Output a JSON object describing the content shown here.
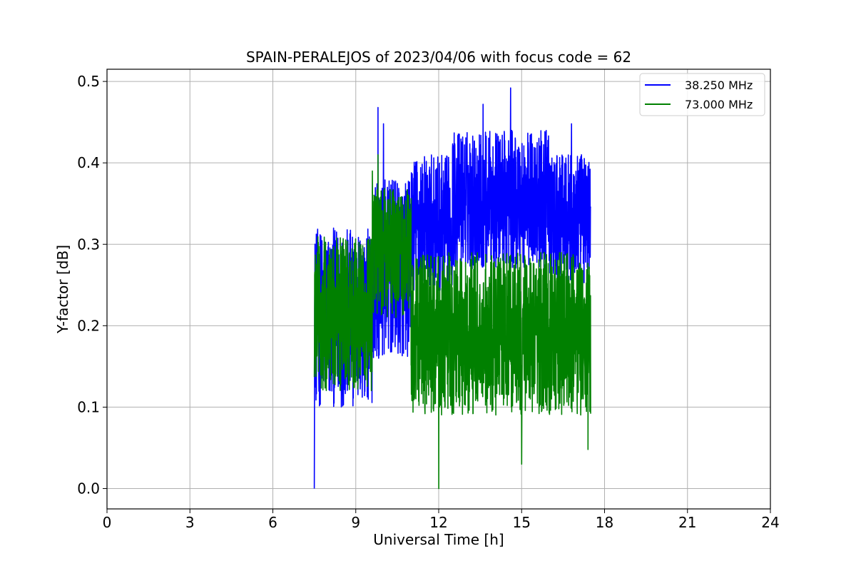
{
  "chart_data": {
    "type": "line",
    "title": "SPAIN-PERALEJOS of 2023/04/06 with focus code = 62",
    "xlabel": "Universal Time [h]",
    "ylabel": "Y-factor [dB]",
    "xlim": [
      0,
      24
    ],
    "ylim": [
      -0.025,
      0.515
    ],
    "xticks": [
      0,
      3,
      6,
      9,
      12,
      15,
      18,
      21,
      24
    ],
    "yticks": [
      0.0,
      0.1,
      0.2,
      0.3,
      0.4,
      0.5
    ],
    "ytick_labels": [
      "0.0",
      "0.1",
      "0.2",
      "0.3",
      "0.4",
      "0.5"
    ],
    "grid": true,
    "legend_position": "top-right",
    "series": [
      {
        "name": "38.250 MHz",
        "color": "#0000ff",
        "segments": [
          {
            "x_start": 7.5,
            "x_end": 9.6,
            "low": 0.1,
            "high": 0.32
          },
          {
            "x_start": 9.6,
            "x_end": 11.0,
            "low": 0.16,
            "high": 0.38
          },
          {
            "x_start": 11.0,
            "x_end": 12.5,
            "low": 0.24,
            "high": 0.41
          },
          {
            "x_start": 12.5,
            "x_end": 16.0,
            "low": 0.27,
            "high": 0.44
          },
          {
            "x_start": 16.0,
            "x_end": 17.5,
            "low": 0.25,
            "high": 0.41
          }
        ],
        "peaks": [
          [
            7.5,
            0.0
          ],
          [
            9.8,
            0.468
          ],
          [
            10.0,
            0.448
          ],
          [
            13.6,
            0.472
          ],
          [
            14.6,
            0.492
          ],
          [
            16.8,
            0.448
          ]
        ]
      },
      {
        "name": "73.000 MHz",
        "color": "#008000",
        "segments": [
          {
            "x_start": 7.5,
            "x_end": 9.6,
            "low": 0.12,
            "high": 0.31
          },
          {
            "x_start": 9.6,
            "x_end": 11.0,
            "low": 0.21,
            "high": 0.37
          },
          {
            "x_start": 11.0,
            "x_end": 17.5,
            "low": 0.09,
            "high": 0.29
          }
        ],
        "peaks": [
          [
            9.8,
            0.41
          ],
          [
            9.6,
            0.39
          ],
          [
            12.0,
            0.0
          ],
          [
            15.0,
            0.03
          ],
          [
            17.4,
            0.048
          ]
        ]
      }
    ]
  }
}
